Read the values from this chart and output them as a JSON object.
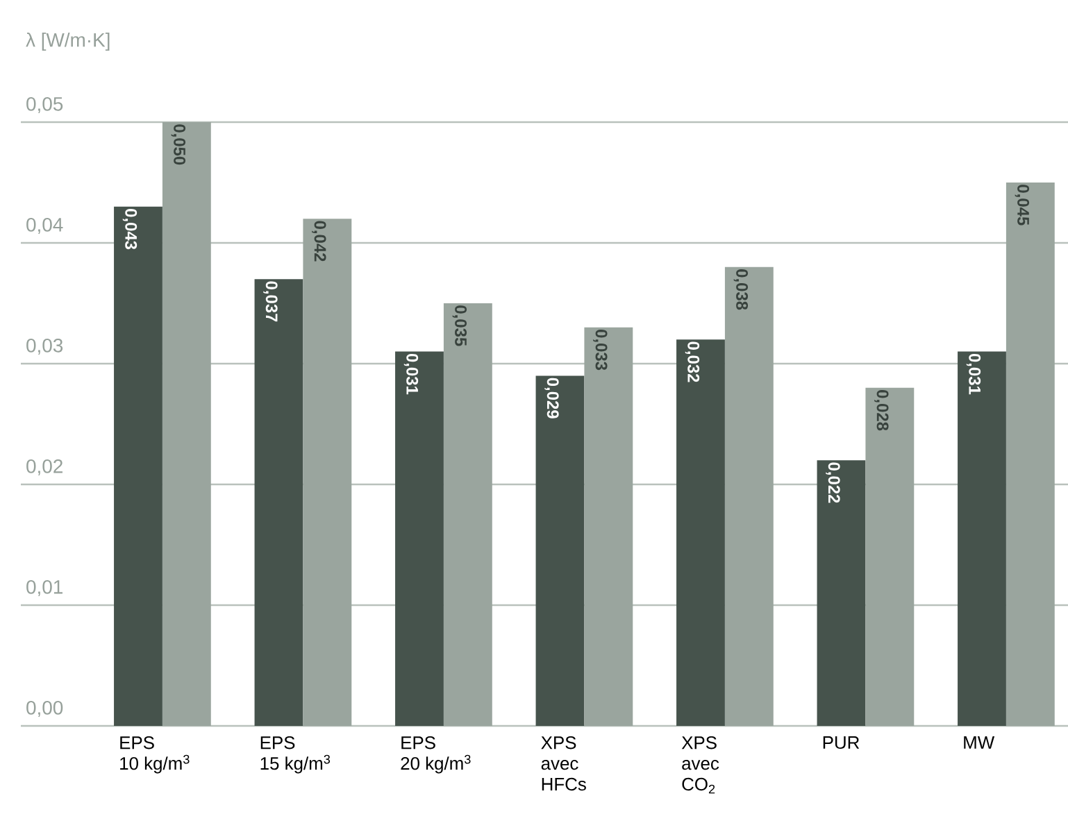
{
  "chart_data": {
    "type": "bar",
    "ylabel": "λ [W/m·K]",
    "categories": [
      "EPS\n10 kg/m$^{3}$",
      "EPS\n15 kg/m$^{3}$",
      "EPS\n20 kg/m$^{3}$",
      "XPS\navec\nHFCs",
      "XPS\navec\nCO$_{2}$",
      "PUR",
      "MW"
    ],
    "series": [
      {
        "color": "#46534c",
        "values": [
          0.043,
          0.037,
          0.031,
          0.029,
          0.032,
          0.022,
          0.031
        ],
        "value_labels": [
          "0,043",
          "0,037",
          "0,031",
          "0,029",
          "0,032",
          "0,022",
          "0,031"
        ]
      },
      {
        "color": "#9aa59e",
        "values": [
          0.05,
          0.042,
          0.035,
          0.033,
          0.038,
          0.028,
          0.045
        ],
        "value_labels": [
          "0,050",
          "0,042",
          "0,035",
          "0,033",
          "0,038",
          "0,028",
          "0,045"
        ]
      }
    ],
    "ylim": [
      0,
      0.05
    ],
    "yticks": [
      {
        "value": 0,
        "label": "0,00"
      },
      {
        "value": 0.01,
        "label": "0,01"
      },
      {
        "value": 0.02,
        "label": "0,02"
      },
      {
        "value": 0.03,
        "label": "0,03"
      },
      {
        "value": 0.04,
        "label": "0,04"
      },
      {
        "value": 0.05,
        "label": "0,05"
      }
    ],
    "grid": "y"
  }
}
